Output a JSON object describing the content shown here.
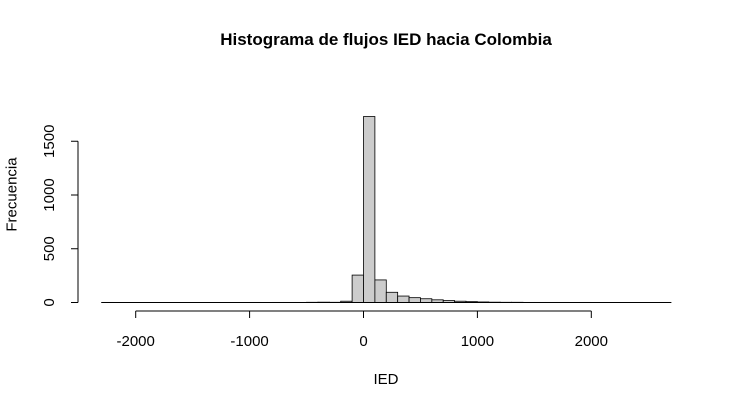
{
  "chart_data": {
    "type": "bar",
    "title": "Histograma de flujos IED hacia Colombia",
    "xlabel": "IED",
    "ylabel": "Frecuencia",
    "bin_width": 100,
    "xlim": [
      -2300,
      2700
    ],
    "ylim": [
      0,
      1750
    ],
    "x_ticks": [
      "-2000",
      "-1000",
      "0",
      "1000",
      "2000"
    ],
    "y_ticks": [
      "0",
      "500",
      "1000",
      "1500"
    ],
    "x_tick_values": [
      -2000,
      -1000,
      0,
      1000,
      2000
    ],
    "y_tick_values": [
      0,
      500,
      1000,
      1500
    ],
    "bin_starts": [
      -2300,
      -2200,
      -2100,
      -2000,
      -1900,
      -1800,
      -1700,
      -1600,
      -1500,
      -1400,
      -1300,
      -1200,
      -1100,
      -1000,
      -900,
      -800,
      -700,
      -600,
      -500,
      -400,
      -300,
      -200,
      -100,
      0,
      100,
      200,
      300,
      400,
      500,
      600,
      700,
      800,
      900,
      1000,
      1100,
      1200,
      1300,
      1400,
      1500,
      1600,
      1700,
      1800,
      1900,
      2000,
      2100,
      2200,
      2300,
      2400,
      2500,
      2600
    ],
    "values": [
      1,
      0,
      0,
      0,
      0,
      0,
      0,
      0,
      0,
      0,
      0,
      0,
      0,
      1,
      0,
      1,
      1,
      1,
      2,
      3,
      2,
      12,
      255,
      1730,
      210,
      95,
      60,
      45,
      35,
      25,
      18,
      12,
      8,
      5,
      3,
      2,
      2,
      1,
      1,
      1,
      1,
      0,
      1,
      0,
      0,
      0,
      0,
      0,
      0,
      1
    ],
    "bar_fill": "#cccccc",
    "bar_stroke": "#000000",
    "grid": false
  }
}
